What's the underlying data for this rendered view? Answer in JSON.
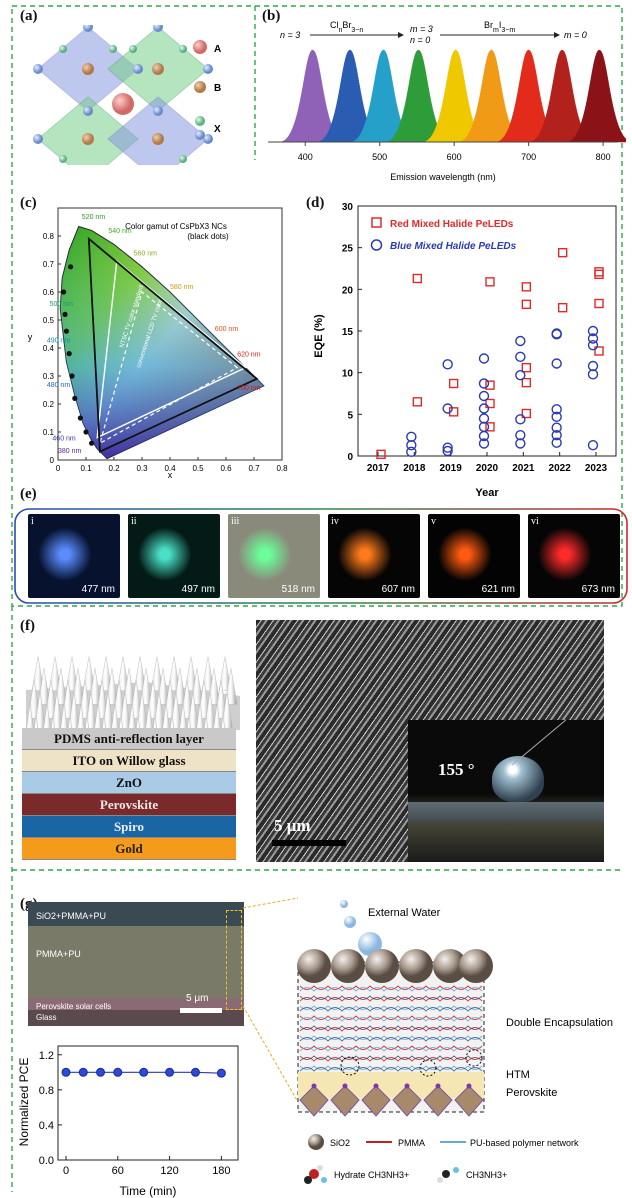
{
  "panels": {
    "a": "(a)",
    "b": "(b)",
    "c": "(c)",
    "d": "(d)",
    "e": "(e)",
    "f": "(f)",
    "g": "(g)"
  },
  "panel_a": {
    "legend": [
      "A",
      "B",
      "X"
    ]
  },
  "panel_b": {
    "arrows": [
      {
        "left": "n = 3",
        "label": "Cl_nBr_3-n",
        "right_top": "m = 3",
        "right_bot": "n = 0"
      },
      {
        "label": "Br_mI_3-m",
        "right": "m = 0"
      }
    ],
    "xlabel": "Emission wavelength (nm)",
    "ticks": [
      "400",
      "500",
      "600",
      "700",
      "800"
    ],
    "peaks": [
      {
        "wl": 410,
        "color": "#8f62b8"
      },
      {
        "wl": 460,
        "color": "#2a5db2"
      },
      {
        "wl": 505,
        "color": "#24a0c9"
      },
      {
        "wl": 552,
        "color": "#2f9c3a"
      },
      {
        "wl": 602,
        "color": "#f0c800"
      },
      {
        "wl": 650,
        "color": "#f19a16"
      },
      {
        "wl": 700,
        "color": "#e32b1c"
      },
      {
        "wl": 745,
        "color": "#b2211c"
      },
      {
        "wl": 795,
        "color": "#8b1318"
      }
    ]
  },
  "panel_c": {
    "title": "Color gamut of CsPbX3 NCs",
    "subtitle": "(black dots)",
    "xlabel": "x",
    "ylabel": "y",
    "xticks": [
      "0",
      "0.1",
      "0.2",
      "0.3",
      "0.4",
      "0.5",
      "0.6",
      "0.7",
      "0.8"
    ],
    "yticks": [
      "0.8",
      "0.7",
      "0.6",
      "0.5",
      "0.4",
      "0.3",
      "0.2",
      "0.1",
      "0"
    ],
    "wl_labels": [
      {
        "t": "520 nm",
        "c": "#2a9a2a"
      },
      {
        "t": "540 nm",
        "c": "#4aaa2a"
      },
      {
        "t": "560 nm",
        "c": "#8aaa1a"
      },
      {
        "t": "580 nm",
        "c": "#d09a10"
      },
      {
        "t": "600 nm",
        "c": "#e0501a"
      },
      {
        "t": "620 nm",
        "c": "#e02020"
      },
      {
        "t": "700 nm",
        "c": "#d01818"
      },
      {
        "t": "500 nm",
        "c": "#1a9a6a"
      },
      {
        "t": "490 nm",
        "c": "#1a8aaa"
      },
      {
        "t": "480 nm",
        "c": "#1a6ac0"
      },
      {
        "t": "460 nm",
        "c": "#3a3ab0"
      },
      {
        "t": "380 nm",
        "c": "#5a2a90"
      }
    ],
    "ntsc": "NTSC TV color standard",
    "lcd": "conventional LCD TV color"
  },
  "chart_data": {
    "type": "scatter",
    "xlabel": "Year",
    "ylabel": "EQE (%)",
    "x_categories": [
      "2017",
      "2018",
      "2019",
      "2020",
      "2021",
      "2022",
      "2023"
    ],
    "ylim": [
      0,
      30
    ],
    "yticks": [
      "0",
      "5",
      "10",
      "15",
      "20",
      "25",
      "30"
    ],
    "series": [
      {
        "name": "Red Mixed Halide PeLEDs",
        "color": "#e02a2a",
        "marker": "square",
        "points": [
          [
            2017,
            0.2
          ],
          [
            2018,
            6.5
          ],
          [
            2018,
            21.3
          ],
          [
            2019,
            8.7
          ],
          [
            2019,
            5.3
          ],
          [
            2020,
            20.9
          ],
          [
            2020,
            8.5
          ],
          [
            2020,
            6.3
          ],
          [
            2020,
            3.5
          ],
          [
            2021,
            20.3
          ],
          [
            2021,
            18.2
          ],
          [
            2021,
            10.6
          ],
          [
            2021,
            8.8
          ],
          [
            2021,
            5.1
          ],
          [
            2022,
            24.4
          ],
          [
            2022,
            17.8
          ],
          [
            2023,
            22.1
          ],
          [
            2023,
            21.8
          ],
          [
            2023,
            18.3
          ],
          [
            2023,
            12.6
          ]
        ]
      },
      {
        "name": "Blue Mixed Halide PeLEDs",
        "color": "#2a3ab0",
        "marker": "circle",
        "points": [
          [
            2018,
            2.3
          ],
          [
            2018,
            1.3
          ],
          [
            2018,
            0.5
          ],
          [
            2019,
            11.0
          ],
          [
            2019,
            5.7
          ],
          [
            2019,
            1.0
          ],
          [
            2019,
            0.6
          ],
          [
            2020,
            11.7
          ],
          [
            2020,
            8.7
          ],
          [
            2020,
            7.2
          ],
          [
            2020,
            5.7
          ],
          [
            2020,
            4.5
          ],
          [
            2020,
            3.5
          ],
          [
            2020,
            2.4
          ],
          [
            2020,
            1.5
          ],
          [
            2021,
            13.8
          ],
          [
            2021,
            11.9
          ],
          [
            2021,
            9.7
          ],
          [
            2021,
            4.4
          ],
          [
            2021,
            2.5
          ],
          [
            2021,
            1.5
          ],
          [
            2022,
            14.7
          ],
          [
            2022,
            14.6
          ],
          [
            2022,
            11.1
          ],
          [
            2022,
            5.6
          ],
          [
            2022,
            4.7
          ],
          [
            2022,
            3.4
          ],
          [
            2022,
            2.5
          ],
          [
            2022,
            1.6
          ],
          [
            2023,
            15.0
          ],
          [
            2023,
            14.1
          ],
          [
            2023,
            13.3
          ],
          [
            2023,
            10.8
          ],
          [
            2023,
            9.8
          ],
          [
            2023,
            1.3
          ]
        ]
      }
    ]
  },
  "panel_e": {
    "photos": [
      {
        "roman": "i",
        "wl": "477 nm",
        "bg": "#06122e",
        "glow": "#5a8cff"
      },
      {
        "roman": "ii",
        "wl": "497 nm",
        "bg": "#031a16",
        "glow": "#4ae0c8"
      },
      {
        "roman": "iii",
        "wl": "518 nm",
        "bg": "#8a8a7a",
        "glow": "#6aff9a"
      },
      {
        "roman": "iv",
        "wl": "607 nm",
        "bg": "#050505",
        "glow": "#ff7a1a"
      },
      {
        "roman": "v",
        "wl": "621 nm",
        "bg": "#030303",
        "glow": "#ff5a10"
      },
      {
        "roman": "vi",
        "wl": "673 nm",
        "bg": "#050505",
        "glow": "#ff2a2a"
      }
    ]
  },
  "panel_f": {
    "layers": [
      {
        "t": "PDMS anti-reflection layer",
        "bg": "#c9c9c9",
        "fg": "#111"
      },
      {
        "t": "ITO on Willow glass",
        "bg": "#efe3c7",
        "fg": "#111"
      },
      {
        "t": "ZnO",
        "bg": "#a9cbe6",
        "fg": "#111"
      },
      {
        "t": "Perovskite",
        "bg": "#7a2a2a",
        "fg": "#f0e6e6"
      },
      {
        "t": "Spiro",
        "bg": "#1a66a4",
        "fg": "#e6f0ff"
      },
      {
        "t": "Gold",
        "bg": "#f59a1a",
        "fg": "#222"
      }
    ],
    "scale": "5 μm",
    "angle": "155 °"
  },
  "panel_g": {
    "sem_labels": [
      "SiO2+PMMA+PU",
      "PMMA+PU",
      "Perovskite  solar cells",
      "Glass"
    ],
    "scale": "5 μm",
    "plot": {
      "ylabel": "Normalized PCE",
      "xlabel": "Time (min)",
      "xticks": [
        "0",
        "60",
        "120",
        "180"
      ],
      "yticks": [
        "0.0",
        "0.4",
        "0.8",
        "1.2"
      ],
      "points": [
        [
          0,
          1.0
        ],
        [
          20,
          1.0
        ],
        [
          40,
          1.0
        ],
        [
          60,
          1.0
        ],
        [
          90,
          1.0
        ],
        [
          120,
          1.0
        ],
        [
          150,
          1.0
        ],
        [
          180,
          0.99
        ]
      ]
    },
    "external_water": "External Water",
    "double_enc": "Double Encapsulation",
    "htm": "HTM",
    "perovskite": "Perovskite",
    "legend": {
      "sio2": "SiO2",
      "pmma": "PMMA",
      "pu": "PU-based polymer network",
      "hydrate": "Hydrate CH3NH3+",
      "ch3": "CH3NH3+"
    }
  }
}
